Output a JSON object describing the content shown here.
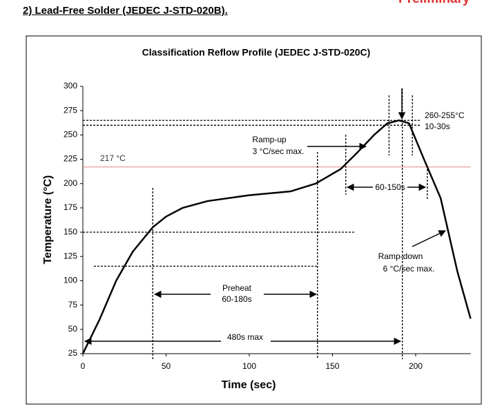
{
  "header": {
    "title": "2) Lead-Free Solder (JEDEC J-STD-020B).",
    "badge": "Preliminary"
  },
  "chart_data": {
    "type": "line",
    "title": "Classification Reflow Profile (JEDEC J-STD-020C)",
    "x_label": "Time (sec)",
    "y_label": "Temperature (°C)",
    "x": [
      0,
      10,
      20,
      30,
      42,
      50,
      60,
      75,
      100,
      125,
      140,
      155,
      165,
      175,
      183,
      190,
      196,
      205,
      215,
      225,
      233
    ],
    "series": [
      {
        "color": "#000000",
        "values": [
          25,
          60,
          100,
          130,
          155,
          166,
          175,
          182,
          188,
          192,
          200,
          215,
          232,
          250,
          262,
          265,
          262,
          225,
          185,
          110,
          61
        ]
      }
    ],
    "xlim": [
      0,
      233
    ],
    "ylim": [
      25,
      300
    ],
    "xticks": [
      0,
      50,
      100,
      150,
      200
    ],
    "yticks": [
      25,
      50,
      75,
      100,
      125,
      150,
      175,
      200,
      225,
      250,
      275,
      300
    ],
    "hlines": [
      {
        "value": 217,
        "color": "#e08080"
      },
      {
        "value": 265,
        "color": "#000000"
      },
      {
        "value": 260,
        "color": "#000000"
      },
      {
        "value": 150,
        "color": "#000000"
      },
      {
        "value": 115,
        "color": "#000000"
      }
    ],
    "vlines": [
      42,
      141,
      158,
      184,
      192,
      198,
      207
    ],
    "annotations": [
      "217 °C",
      "Ramp-up",
      "3 °C/sec max.",
      "260-255°C",
      "10-30s",
      "60-150s",
      "Preheat",
      "60-180s",
      "480s max",
      "Ramp-down",
      "6 °C/sec max."
    ]
  }
}
